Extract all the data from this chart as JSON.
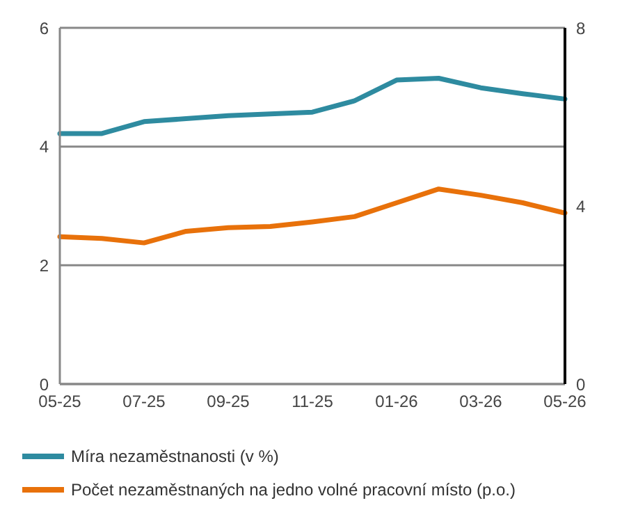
{
  "chart_data": {
    "type": "line",
    "categories": [
      "05-25",
      null,
      "07-25",
      null,
      "09-25",
      null,
      "11-25",
      null,
      "01-26",
      null,
      "03-26",
      null,
      "05-26"
    ],
    "series": [
      {
        "name": "Míra nezaměstnanosti (v %)",
        "color": "#2e8ba0",
        "values": [
          4.22,
          4.22,
          4.42,
          4.47,
          4.52,
          4.55,
          4.58,
          4.77,
          5.12,
          5.15,
          4.99,
          4.89,
          4.8
        ]
      },
      {
        "name": "Počet nezaměstnaných na jedno volné pracovní místo (p.o.)",
        "color": "#e8710a",
        "axis": "y2",
        "values": [
          3.31,
          3.27,
          3.17,
          3.43,
          3.51,
          3.54,
          3.64,
          3.76,
          4.07,
          4.38,
          4.24,
          4.07,
          3.84
        ]
      }
    ],
    "ylim": [
      0,
      6
    ],
    "yticks": [
      0,
      2,
      4,
      6
    ],
    "y2lim": [
      0,
      8
    ],
    "y2ticks": [
      0,
      4,
      8
    ],
    "grid": "y",
    "legend": "bottom",
    "marker": "none",
    "line_style": "solid"
  }
}
